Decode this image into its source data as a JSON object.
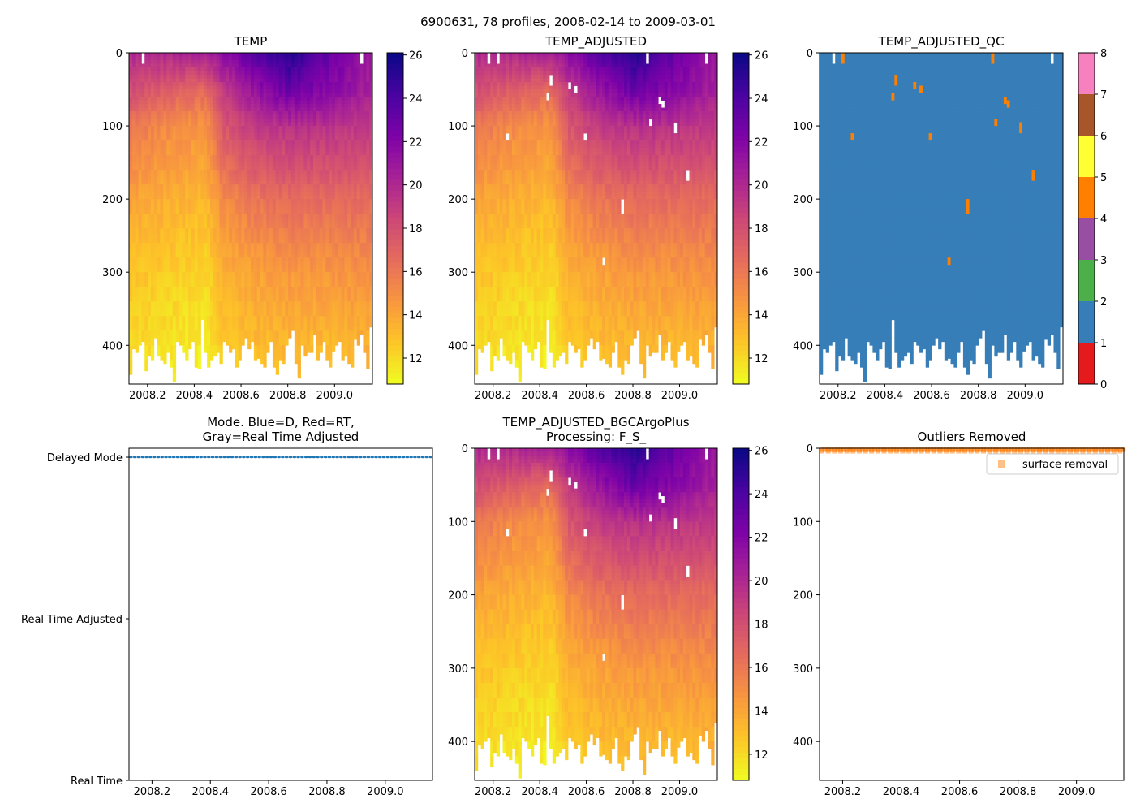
{
  "figure_title": "6900631, 78 profiles, 2008-02-14 to 2009-03-01",
  "chart_data": [
    {
      "id": "temp",
      "type": "heatmap",
      "title": "TEMP",
      "xlabel": "",
      "ylabel": "",
      "xlim": [
        2008.121,
        2009.162
      ],
      "ylim": [
        453,
        0
      ],
      "xticks": [
        "2008.2",
        "2008.4",
        "2008.6",
        "2008.8",
        "2009.0"
      ],
      "yticks": [
        "0",
        "100",
        "200",
        "300",
        "400"
      ],
      "colorbar": {
        "ticks": [
          "12",
          "14",
          "16",
          "18",
          "20",
          "22",
          "24",
          "26"
        ],
        "range": [
          10.8,
          26.1
        ],
        "cmap": "plasma_r"
      }
    },
    {
      "id": "temp_adj",
      "type": "heatmap",
      "title": "TEMP_ADJUSTED",
      "xlim": [
        2008.121,
        2009.162
      ],
      "ylim": [
        453,
        0
      ],
      "xticks": [
        "2008.2",
        "2008.4",
        "2008.6",
        "2008.8",
        "2009.0"
      ],
      "yticks": [
        "0",
        "100",
        "200",
        "300",
        "400"
      ],
      "colorbar": {
        "ticks": [
          "12",
          "14",
          "16",
          "18",
          "20",
          "22",
          "24",
          "26"
        ],
        "range": [
          10.8,
          26.1
        ],
        "cmap": "plasma_r"
      }
    },
    {
      "id": "temp_qc",
      "type": "heatmap",
      "title": "TEMP_ADJUSTED_QC",
      "xlim": [
        2008.121,
        2009.162
      ],
      "ylim": [
        453,
        0
      ],
      "xticks": [
        "2008.2",
        "2008.4",
        "2008.6",
        "2008.8",
        "2009.0"
      ],
      "yticks": [
        "0",
        "100",
        "200",
        "300",
        "400"
      ],
      "colorbar": {
        "ticks": [
          "0",
          "1",
          "2",
          "3",
          "4",
          "5",
          "6",
          "7",
          "8"
        ],
        "range": [
          0,
          8
        ],
        "colors": [
          "#e41a1c",
          "#377eb8",
          "#4daf4a",
          "#984ea3",
          "#ff7f00",
          "#ffff33",
          "#a65628",
          "#f781bf",
          "#999999"
        ]
      }
    },
    {
      "id": "mode",
      "type": "scatter",
      "title_lines": [
        "Mode. Blue=D, Red=RT,",
        "Gray=Real Time Adjusted"
      ],
      "xlim": [
        2008.121,
        2009.162
      ],
      "xticks": [
        "2008.2",
        "2008.4",
        "2008.6",
        "2008.8",
        "2009.0"
      ],
      "ycategories": [
        "Real Time",
        "Real Time Adjusted",
        "Delayed Mode"
      ],
      "value": "Delayed Mode",
      "color": "#1f77b4"
    },
    {
      "id": "temp_bgc",
      "type": "heatmap",
      "title_lines": [
        "TEMP_ADJUSTED_BGCArgoPlus",
        "Processing: F_S_"
      ],
      "xlim": [
        2008.121,
        2009.162
      ],
      "ylim": [
        453,
        0
      ],
      "xticks": [
        "2008.2",
        "2008.4",
        "2008.6",
        "2008.8",
        "2009.0"
      ],
      "yticks": [
        "0",
        "100",
        "200",
        "300",
        "400"
      ],
      "colorbar": {
        "ticks": [
          "12",
          "14",
          "16",
          "18",
          "20",
          "22",
          "24",
          "26"
        ],
        "range": [
          10.8,
          26.1
        ],
        "cmap": "plasma_r"
      }
    },
    {
      "id": "outliers",
      "type": "scatter",
      "title": "Outliers Removed",
      "xlim": [
        2008.121,
        2009.162
      ],
      "ylim": [
        453,
        0
      ],
      "xticks": [
        "2008.2",
        "2008.4",
        "2008.6",
        "2008.8",
        "2009.0"
      ],
      "yticks": [
        "0",
        "100",
        "200",
        "300",
        "400"
      ],
      "legend": {
        "label": "surface removal",
        "placement": "top-right",
        "color": "#ff7f0e"
      },
      "depths": [
        0,
        2,
        4
      ]
    }
  ],
  "profiles": {
    "count": 78,
    "time_start": 2008.121,
    "time_end": 2009.162,
    "bottom_depth_m": [
      440,
      405,
      410,
      400,
      395,
      435,
      415,
      420,
      390,
      415,
      420,
      425,
      410,
      430,
      450,
      395,
      400,
      410,
      420,
      405,
      395,
      430,
      432,
      365,
      410,
      430,
      420,
      415,
      410,
      425,
      395,
      400,
      410,
      405,
      430,
      420,
      400,
      390,
      405,
      395,
      420,
      418,
      425,
      430,
      410,
      395,
      430,
      440,
      420,
      425,
      400,
      390,
      380,
      425,
      445,
      400,
      415,
      410,
      410,
      385,
      420,
      410,
      395,
      420,
      430,
      408,
      400,
      395,
      420,
      415,
      425,
      430,
      392,
      400,
      385,
      410,
      432,
      375
    ],
    "knot_times": [
      2008.12,
      2008.3,
      2008.45,
      2008.52,
      2008.65,
      2008.8,
      2008.95,
      2009.16
    ],
    "knot_depths": [
      0,
      50,
      100,
      200,
      300,
      400,
      450
    ],
    "knot_temps": [
      [
        20.0,
        18.0,
        16.0,
        14.0,
        12.8,
        12.0,
        11.5
      ],
      [
        20.0,
        17.0,
        15.0,
        13.5,
        12.3,
        11.5,
        11.2
      ],
      [
        20.5,
        16.5,
        14.6,
        13.2,
        12.0,
        11.3,
        11.0
      ],
      [
        21.5,
        19.0,
        17.5,
        15.0,
        13.5,
        12.5,
        12.0
      ],
      [
        23.5,
        21.0,
        19.0,
        16.0,
        14.0,
        13.0,
        12.5
      ],
      [
        25.5,
        23.0,
        19.5,
        16.5,
        14.5,
        13.2,
        12.8
      ],
      [
        23.5,
        22.0,
        19.5,
        16.5,
        14.5,
        13.2,
        12.8
      ],
      [
        21.0,
        20.5,
        19.0,
        16.5,
        14.8,
        13.5,
        13.0
      ]
    ],
    "missing_surface": [
      [
        2008.183,
        0,
        12
      ],
      [
        2009.11,
        0,
        12
      ]
    ],
    "qc4_points": [
      [
        2008.22,
        5
      ],
      [
        2008.45,
        35
      ],
      [
        2008.43,
        58
      ],
      [
        2008.53,
        42
      ],
      [
        2008.56,
        47
      ],
      [
        2008.26,
        113
      ],
      [
        2008.6,
        113
      ],
      [
        2008.86,
        5
      ],
      [
        2008.88,
        93
      ],
      [
        2008.92,
        62
      ],
      [
        2008.93,
        67
      ],
      [
        2008.98,
        100
      ],
      [
        2009.04,
        165
      ],
      [
        2008.76,
        205
      ],
      [
        2008.75,
        212
      ],
      [
        2008.67,
        283
      ]
    ]
  }
}
